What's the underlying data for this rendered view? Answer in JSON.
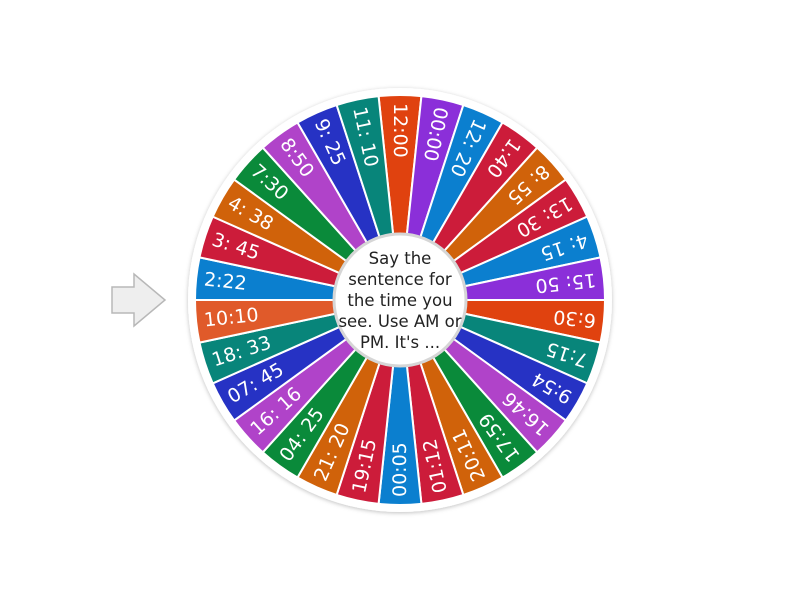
{
  "wheel": {
    "center_text": "Say the sentence for the time you see. Use AM or PM. It's ...",
    "pointer_icon": "arrow-right-icon",
    "selected_index": 22,
    "segments": [
      {
        "label": "12:00",
        "color": "#e0420f"
      },
      {
        "label": "00:00",
        "color": "#8b2fd9"
      },
      {
        "label": "12: 20",
        "color": "#0b7fcf"
      },
      {
        "label": "1:40",
        "color": "#cc1c3a"
      },
      {
        "label": "8: 55",
        "color": "#d0620a"
      },
      {
        "label": "13: 30",
        "color": "#cc1c3a"
      },
      {
        "label": "4: 15",
        "color": "#0b7fcf"
      },
      {
        "label": "15: 50",
        "color": "#8b2fd9"
      },
      {
        "label": "6:30",
        "color": "#e0420f"
      },
      {
        "label": "7:15",
        "color": "#08857a"
      },
      {
        "label": "9:54",
        "color": "#2632c4"
      },
      {
        "label": "16:46",
        "color": "#b043c9"
      },
      {
        "label": "17:59",
        "color": "#0a8a3a"
      },
      {
        "label": "20:11",
        "color": "#d0620a"
      },
      {
        "label": "01:12",
        "color": "#cc1c3a"
      },
      {
        "label": "00:05",
        "color": "#0b7fcf"
      },
      {
        "label": "19:15",
        "color": "#cc1c3a"
      },
      {
        "label": "21: 20",
        "color": "#d0620a"
      },
      {
        "label": "04: 25",
        "color": "#0a8a3a"
      },
      {
        "label": "16: 16",
        "color": "#b043c9"
      },
      {
        "label": "07: 45",
        "color": "#2632c4"
      },
      {
        "label": "18: 33",
        "color": "#08857a"
      },
      {
        "label": "10:10",
        "color": "#e05a2a"
      },
      {
        "label": "2:22",
        "color": "#0b7fcf"
      },
      {
        "label": "3: 45",
        "color": "#cc1c3a"
      },
      {
        "label": "4: 38",
        "color": "#d0620a"
      },
      {
        "label": "7:30",
        "color": "#0a8a3a"
      },
      {
        "label": "8:50",
        "color": "#b043c9"
      },
      {
        "label": "9: 25",
        "color": "#2632c4"
      },
      {
        "label": "11: 10",
        "color": "#08857a"
      }
    ]
  }
}
